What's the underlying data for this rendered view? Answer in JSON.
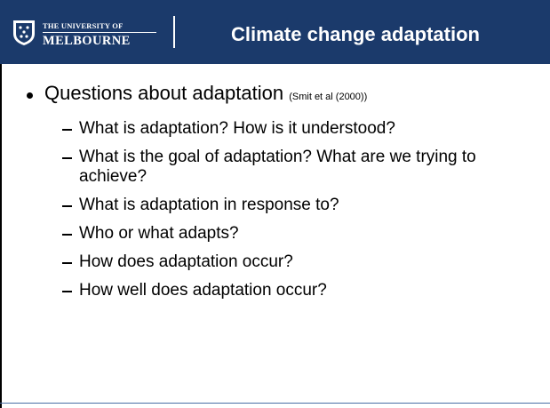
{
  "header": {
    "logo_top": "THE UNIVERSITY OF",
    "logo_bottom": "MELBOURNE",
    "title": "Climate change adaptation"
  },
  "body": {
    "bullet": "Questions about adaptation",
    "citation": "(Smit et al (2000))",
    "items": [
      "What is adaptation? How is it understood?",
      "What is the goal of adaptation? What are we trying to achieve?",
      "What is adaptation in response to?",
      "Who or what adapts?",
      "How does adaptation occur?",
      "How well does adaptation occur?"
    ]
  }
}
